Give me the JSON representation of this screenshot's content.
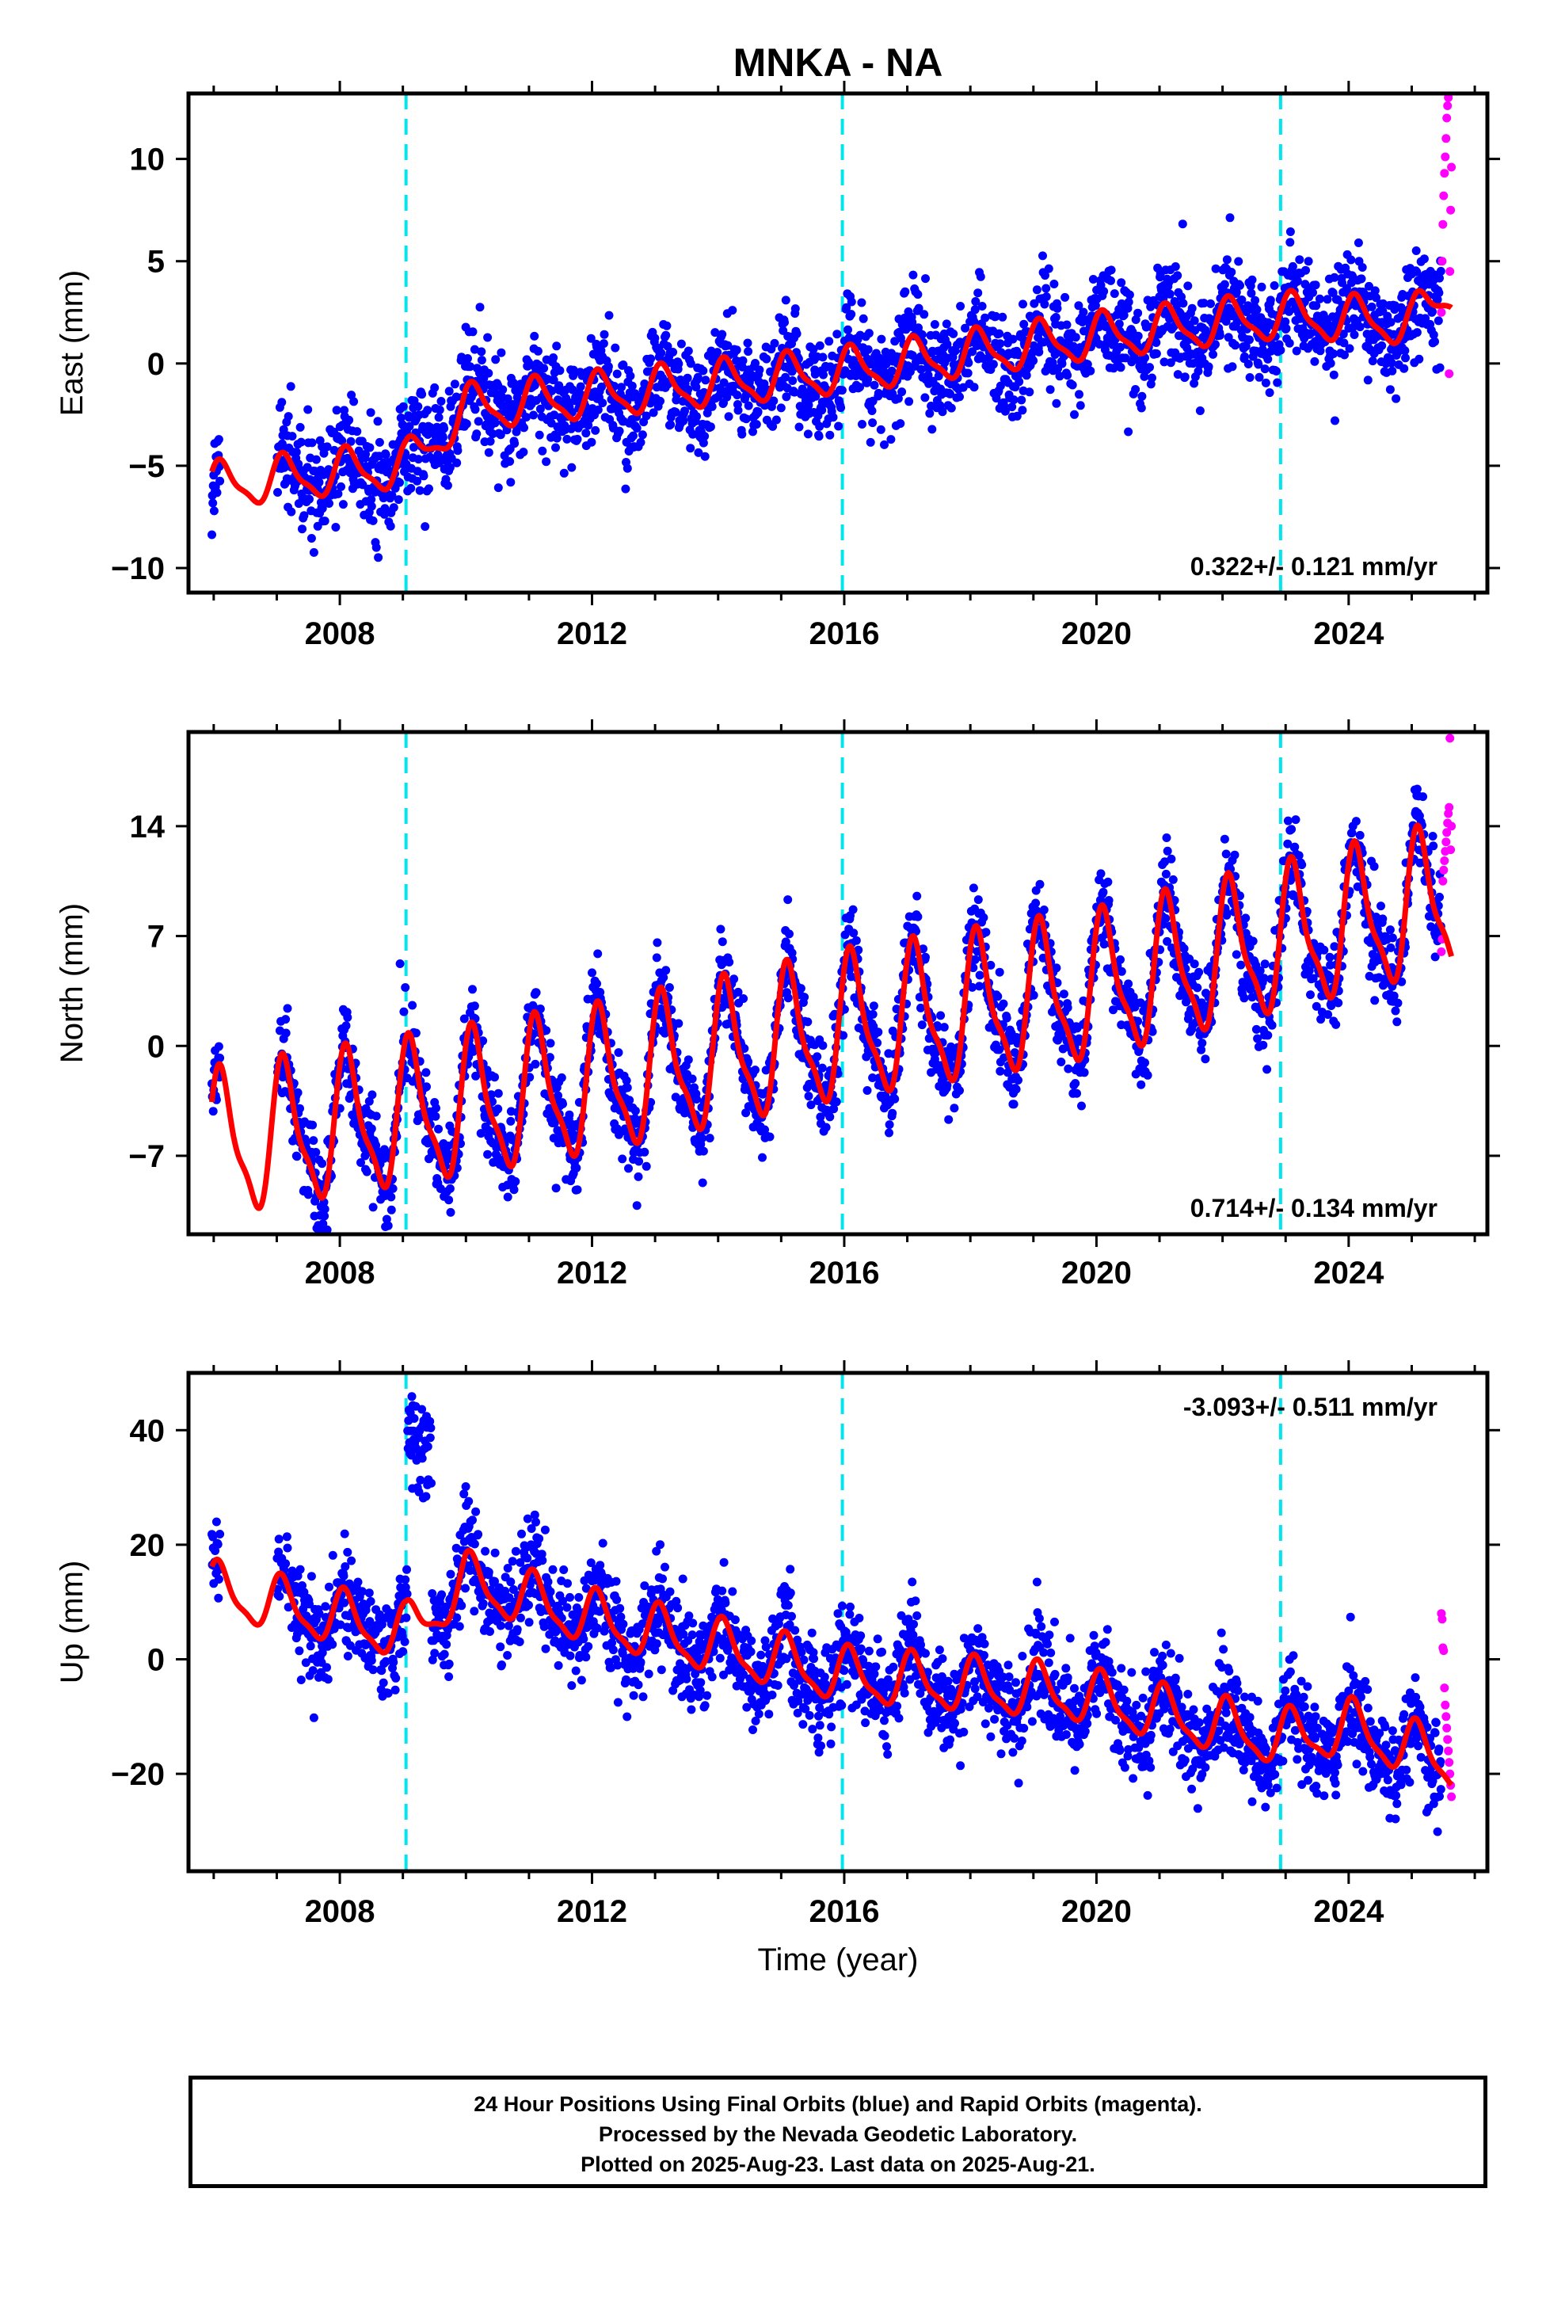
{
  "chart_data": {
    "type": "scatter",
    "title": "MNKA - NA",
    "xlabel": "Time (year)",
    "xlim": [
      2005.6,
      2026.2
    ],
    "xticks": [
      2008,
      2012,
      2016,
      2020,
      2024
    ],
    "event_lines": [
      2009.05,
      2015.97,
      2022.92
    ],
    "series_colors": {
      "final_orbits": "#0000ff",
      "rapid_orbits": "#ff00ff",
      "model_fit": "#ff0000",
      "event_lines": "#00e5ee"
    },
    "panels": [
      {
        "name": "east",
        "ylabel": "East (mm)",
        "ylim": [
          -11.2,
          13.2
        ],
        "yticks": [
          -10,
          -5,
          0,
          5,
          10
        ],
        "rate_label": "0.322+/- 0.121 mm/yr",
        "rate_position": "bottom-right",
        "data_start": 2005.97,
        "final_range": [
          2005.97,
          2025.47
        ],
        "rapid_range": [
          2025.47,
          2025.63
        ],
        "scatter_sd": 1.3,
        "model": {
          "anchor_year": 2005.97,
          "amplitude": 1.05,
          "phase": 0.55,
          "offsets": [
            {
              "year": 2009.05,
              "value": 2.3
            },
            {
              "year": 2015.97,
              "value": 0.4
            },
            {
              "year": 2022.92,
              "value": -0.5
            }
          ],
          "trend_points": [
            {
              "year": 2005.97,
              "value": -6.0
            },
            {
              "year": 2009.05,
              "value": -5.0
            },
            {
              "year": 2010.0,
              "value": -2.2
            },
            {
              "year": 2015.97,
              "value": -0.4
            },
            {
              "year": 2020.0,
              "value": 1.3
            },
            {
              "year": 2022.92,
              "value": 2.3
            },
            {
              "year": 2025.0,
              "value": 2.0
            },
            {
              "year": 2025.62,
              "value": 3.6
            }
          ]
        },
        "rapid_values": [
          2.5,
          5.0,
          6.8,
          8.2,
          9.3,
          10.1,
          11.0,
          12.0,
          12.6,
          13.0,
          -0.5,
          4.5,
          7.5,
          9.6
        ]
      },
      {
        "name": "north",
        "ylabel": "North (mm)",
        "ylim": [
          -12,
          20
        ],
        "yticks": [
          -7,
          0,
          7,
          14
        ],
        "rate_label": "0.714+/- 0.134 mm/yr",
        "rate_position": "bottom-right",
        "data_start": 2005.97,
        "final_range": [
          2005.97,
          2025.47
        ],
        "rapid_range": [
          2025.47,
          2025.63
        ],
        "scatter_sd": 1.4,
        "model": {
          "anchor_year": 2005.97,
          "amplitude": 4.3,
          "phase": 0.55,
          "offsets": [
            {
              "year": 2015.97,
              "value": -1.5
            },
            {
              "year": 2022.92,
              "value": 2.5
            }
          ],
          "trend_points": [
            {
              "year": 2005.97,
              "value": -6.5
            },
            {
              "year": 2009.0,
              "value": -4.5
            },
            {
              "year": 2012.0,
              "value": -2.5
            },
            {
              "year": 2015.97,
              "value": 1.0
            },
            {
              "year": 2020.0,
              "value": 3.6
            },
            {
              "year": 2022.92,
              "value": 6.6
            },
            {
              "year": 2025.62,
              "value": 9.3
            }
          ]
        },
        "rapid_values": [
          6.0,
          6.8,
          10.5,
          11.2,
          11.8,
          12.4,
          13.0,
          13.6,
          14.2,
          14.8,
          15.2,
          19.6,
          12.5,
          14.0
        ]
      },
      {
        "name": "up",
        "ylabel": "Up (mm)",
        "ylim": [
          -37,
          50
        ],
        "yticks": [
          -20,
          0,
          20,
          40
        ],
        "rate_label": "-3.093+/- 0.511 mm/yr",
        "rate_position": "top-right",
        "data_start": 2005.97,
        "final_range": [
          2005.97,
          2025.47
        ],
        "rapid_range": [
          2025.47,
          2025.63
        ],
        "scatter_sd": 4.2,
        "outlier_burst": {
          "range": [
            2009.07,
            2009.45
          ],
          "center": 38,
          "sd": 4.0
        },
        "model": {
          "anchor_year": 2005.97,
          "amplitude": 4.5,
          "phase": 0.8,
          "offsets": [
            {
              "year": 2009.05,
              "value": 8.0
            },
            {
              "year": 2015.97,
              "value": 5.0
            },
            {
              "year": 2022.92,
              "value": 4.0
            }
          ],
          "trend_points": [
            {
              "year": 2005.97,
              "value": 12.0
            },
            {
              "year": 2009.05,
              "value": 4.5
            },
            {
              "year": 2010.0,
              "value": 13.5
            },
            {
              "year": 2012.0,
              "value": 7.0
            },
            {
              "year": 2015.97,
              "value": -3.0
            },
            {
              "year": 2019.5,
              "value": -6.0
            },
            {
              "year": 2022.92,
              "value": -14.0
            },
            {
              "year": 2024.0,
              "value": -12.0
            },
            {
              "year": 2025.62,
              "value": -18.0
            }
          ]
        },
        "rapid_values": [
          8.0,
          7.0,
          2.0,
          1.5,
          -5.0,
          -8.0,
          -10.0,
          -12.0,
          -14.0,
          -16.0,
          -18.0,
          -20.0,
          -22.0,
          -24.0
        ]
      }
    ]
  },
  "footer": {
    "line1": "24 Hour Positions Using Final Orbits (blue) and Rapid Orbits (magenta).",
    "line2": "Processed by the Nevada Geodetic Laboratory.",
    "line3": "Plotted on 2025-Aug-23. Last data on 2025-Aug-21."
  }
}
